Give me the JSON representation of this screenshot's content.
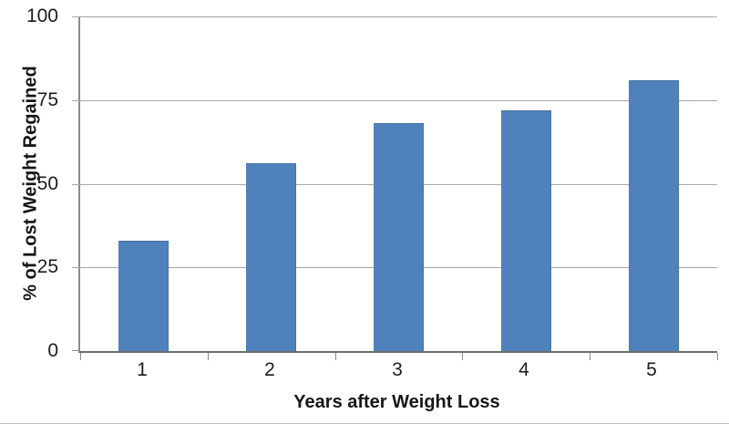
{
  "chart_data": {
    "type": "bar",
    "title": "",
    "xlabel": "Years after Weight Loss",
    "ylabel": "% of Lost Weight Regained",
    "categories": [
      "1",
      "2",
      "3",
      "4",
      "5"
    ],
    "values": [
      33,
      56,
      68,
      72,
      81
    ],
    "ylim": [
      0,
      100
    ],
    "yticks": [
      0,
      25,
      50,
      75,
      100
    ],
    "grid": "horizontal gridlines at each y tick",
    "legend_position": "none",
    "bar_color": "#4F81BD",
    "gridline_color": "#A6A6A6",
    "axis_color": "#8C8C8C",
    "text_color": "#1C1C1C",
    "background_color": "#FFFFFF"
  }
}
